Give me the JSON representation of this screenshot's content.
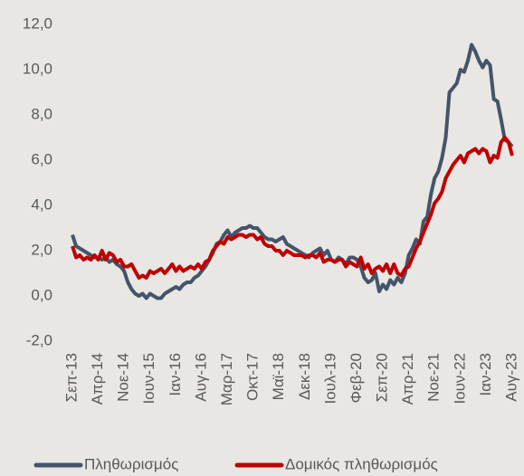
{
  "chart_data": {
    "type": "line",
    "categories": [
      "Σεπ-13",
      null,
      null,
      null,
      null,
      null,
      null,
      "Απρ-14",
      null,
      null,
      null,
      null,
      null,
      null,
      "Νοε-14",
      null,
      null,
      null,
      null,
      null,
      null,
      "Ιουν-15",
      null,
      null,
      null,
      null,
      null,
      null,
      "Ιαν-16",
      null,
      null,
      null,
      null,
      null,
      null,
      "Αυγ-16",
      null,
      null,
      null,
      null,
      null,
      null,
      "Μαρ-17",
      null,
      null,
      null,
      null,
      null,
      null,
      "Οκτ-17",
      null,
      null,
      null,
      null,
      null,
      null,
      "Μαϊ-18",
      null,
      null,
      null,
      null,
      null,
      null,
      "Δεκ-18",
      null,
      null,
      null,
      null,
      null,
      null,
      "Ιουλ-19",
      null,
      null,
      null,
      null,
      null,
      null,
      "Φεβ-20",
      null,
      null,
      null,
      null,
      null,
      null,
      "Σεπ-20",
      null,
      null,
      null,
      null,
      null,
      null,
      "Απρ-21",
      null,
      null,
      null,
      null,
      null,
      null,
      "Νοε-21",
      null,
      null,
      null,
      null,
      null,
      null,
      "Ιουν-22",
      null,
      null,
      null,
      null,
      null,
      null,
      "Ιαν-23",
      null,
      null,
      null,
      null,
      null,
      null,
      "Αυγ-23"
    ],
    "series": [
      {
        "name": "Πληθωρισμός",
        "color": "#44546a",
        "values": [
          2.7,
          2.2,
          2.1,
          2.0,
          1.9,
          1.8,
          1.7,
          1.7,
          1.6,
          1.7,
          1.5,
          1.6,
          1.4,
          1.3,
          1.1,
          0.6,
          0.3,
          0.1,
          0.0,
          0.1,
          -0.1,
          0.1,
          0.0,
          -0.1,
          -0.1,
          0.1,
          0.2,
          0.3,
          0.4,
          0.3,
          0.5,
          0.6,
          0.6,
          0.8,
          0.9,
          1.1,
          1.3,
          1.6,
          1.9,
          2.3,
          2.4,
          2.7,
          2.9,
          2.6,
          2.8,
          2.9,
          3.0,
          3.0,
          3.1,
          3.0,
          3.0,
          2.8,
          2.6,
          2.5,
          2.5,
          2.4,
          2.5,
          2.6,
          2.3,
          2.2,
          2.1,
          2.0,
          1.9,
          1.8,
          1.7,
          1.9,
          2.0,
          2.1,
          1.8,
          2.0,
          1.6,
          1.5,
          1.7,
          1.6,
          1.4,
          1.7,
          1.7,
          1.6,
          1.3,
          0.8,
          0.6,
          0.7,
          1.0,
          0.2,
          0.5,
          0.3,
          0.7,
          0.5,
          0.8,
          0.6,
          1.0,
          1.8,
          2.1,
          2.5,
          2.3,
          3.3,
          3.5,
          4.5,
          5.2,
          5.5,
          6.1,
          7.0,
          9.0,
          9.2,
          9.4,
          10.0,
          9.9,
          10.4,
          11.1,
          10.8,
          10.4,
          10.1,
          10.4,
          10.2,
          8.7,
          8.6,
          7.8,
          6.9,
          6.8,
          6.6
        ]
      },
      {
        "name": "Δομικός πληθωρισμός",
        "color": "#c00000",
        "values": [
          2.2,
          1.7,
          1.8,
          1.6,
          1.7,
          1.6,
          1.8,
          1.6,
          2.0,
          1.6,
          1.9,
          1.8,
          1.5,
          1.6,
          1.3,
          1.3,
          1.4,
          1.1,
          0.8,
          0.9,
          0.8,
          1.1,
          1.0,
          1.1,
          1.2,
          1.0,
          1.2,
          1.4,
          1.1,
          1.3,
          1.1,
          1.2,
          1.3,
          1.2,
          1.4,
          1.2,
          1.5,
          1.6,
          2.0,
          2.2,
          2.4,
          2.3,
          2.6,
          2.5,
          2.6,
          2.7,
          2.7,
          2.6,
          2.7,
          2.7,
          2.5,
          2.6,
          2.3,
          2.2,
          2.2,
          2.0,
          2.0,
          1.8,
          2.0,
          1.9,
          1.8,
          1.8,
          1.8,
          1.7,
          1.8,
          1.8,
          1.7,
          1.9,
          1.5,
          1.6,
          1.6,
          1.5,
          1.6,
          1.6,
          1.3,
          1.5,
          1.4,
          1.3,
          1.7,
          1.2,
          1.4,
          1.0,
          1.2,
          1.3,
          1.1,
          1.4,
          1.0,
          1.4,
          1.0,
          0.9,
          1.2,
          1.3,
          1.7,
          2.1,
          2.4,
          2.8,
          3.2,
          3.6,
          4.1,
          4.3,
          4.6,
          5.2,
          5.5,
          5.8,
          6.0,
          6.2,
          5.9,
          6.3,
          6.4,
          6.5,
          6.3,
          6.5,
          6.4,
          5.9,
          6.2,
          6.1,
          6.8,
          7.0,
          6.8,
          6.2
        ]
      }
    ],
    "ylim": [
      -2,
      12
    ],
    "yticks": [
      {
        "value": -2,
        "label": "-2,0"
      },
      {
        "value": 0,
        "label": "0,0"
      },
      {
        "value": 2,
        "label": "2,0"
      },
      {
        "value": 4,
        "label": "4,0"
      },
      {
        "value": 6,
        "label": "6,0"
      },
      {
        "value": 8,
        "label": "8,0"
      },
      {
        "value": 10,
        "label": "10,0"
      },
      {
        "value": 12,
        "label": "12,0"
      }
    ],
    "legend": "bottom"
  }
}
